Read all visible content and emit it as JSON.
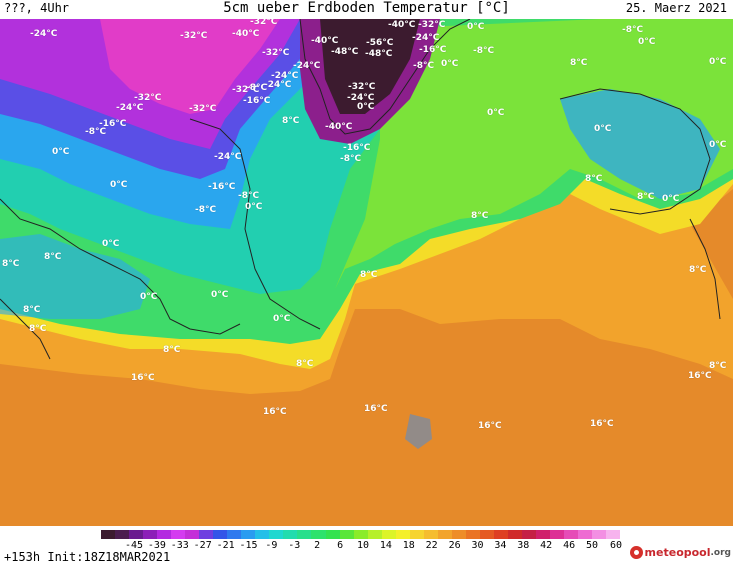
{
  "header": {
    "top_left": "???, 4Uhr",
    "title": "5cm ueber Erdboden Temperatur [°C]",
    "date": "25. Maerz 2021"
  },
  "footer": {
    "init_text": "+153h Init:18Z18MAR2021",
    "logo_main": "meteopool",
    "logo_suffix": ".org"
  },
  "colors": {
    "land_outline": "#222222",
    "label_text": "#ffffff"
  },
  "legend": {
    "ticks": [
      "-45",
      "-39",
      "-33",
      "-27",
      "-21",
      "-15",
      "-9",
      "-3",
      "2",
      "6",
      "10",
      "14",
      "18",
      "22",
      "26",
      "30",
      "34",
      "38",
      "42",
      "46",
      "50",
      "60"
    ],
    "colors": [
      "#3c1b2f",
      "#4b1d4f",
      "#6a1b8f",
      "#8c1fb8",
      "#b32ae0",
      "#d43bf0",
      "#c42fd8",
      "#6f3fe0",
      "#3355e8",
      "#2f79ee",
      "#2a9cf0",
      "#24bfe8",
      "#1fd8d0",
      "#22dcae",
      "#28df8c",
      "#2ee26c",
      "#34e250",
      "#5ae63a",
      "#8aec2a",
      "#b6f02a",
      "#dcf428",
      "#f4f02a",
      "#f6d430",
      "#f5bd2f",
      "#f2a42c",
      "#ee8d28",
      "#ea7424",
      "#e55a22",
      "#de3f22",
      "#d02a2a",
      "#c52045",
      "#d0206b",
      "#dd2f95",
      "#e64bb7",
      "#ee6bd2",
      "#f38fe3",
      "#f7b3ee"
    ]
  },
  "map_labels": [
    {
      "text": "-24°C",
      "icon": "temp-label"
    },
    {
      "text": "-32°C"
    },
    {
      "text": "-32°C"
    },
    {
      "text": "-40°C"
    },
    {
      "text": "-40°C"
    },
    {
      "text": "-32°C"
    },
    {
      "text": "0°C"
    },
    {
      "text": "-8°C"
    },
    {
      "text": "0°C"
    },
    {
      "text": "-32°C"
    },
    {
      "text": "-40°C"
    },
    {
      "text": "-48°C"
    },
    {
      "text": "-56°C"
    },
    {
      "text": "-24°C"
    },
    {
      "text": "-48°C"
    },
    {
      "text": "-16°C"
    },
    {
      "text": "-8°C"
    },
    {
      "text": "0°C"
    },
    {
      "text": "-8°C"
    },
    {
      "text": "-24°C"
    },
    {
      "text": "-24°C"
    },
    {
      "text": "8°C"
    },
    {
      "text": "0°C"
    },
    {
      "text": "-24°C"
    },
    {
      "text": "-8°C"
    },
    {
      "text": "-32°C"
    },
    {
      "text": "-32°C"
    },
    {
      "text": "-16°C"
    },
    {
      "text": "-32°C"
    },
    {
      "text": "-24°C"
    },
    {
      "text": "-24°C"
    },
    {
      "text": "-32°C"
    },
    {
      "text": "0°C"
    },
    {
      "text": "0°C"
    },
    {
      "text": "-16°C"
    },
    {
      "text": "-8°C"
    },
    {
      "text": "-40°C"
    },
    {
      "text": "8°C"
    },
    {
      "text": "0°C"
    },
    {
      "text": "0°C"
    },
    {
      "text": "0°C"
    },
    {
      "text": "-16°C"
    },
    {
      "text": "-8°C"
    },
    {
      "text": "-24°C"
    },
    {
      "text": "0°C"
    },
    {
      "text": "-16°C"
    },
    {
      "text": "-8°C"
    },
    {
      "text": "8°C"
    },
    {
      "text": "0°C"
    },
    {
      "text": "-8°C"
    },
    {
      "text": "0°C"
    },
    {
      "text": "8°C"
    },
    {
      "text": "8°C"
    },
    {
      "text": "0°C"
    },
    {
      "text": "8°C"
    },
    {
      "text": "8°C"
    },
    {
      "text": "8°C"
    },
    {
      "text": "8°C"
    },
    {
      "text": "0°C"
    },
    {
      "text": "0°C"
    },
    {
      "text": "8°C"
    },
    {
      "text": "8°C"
    },
    {
      "text": "0°C"
    },
    {
      "text": "8°C"
    },
    {
      "text": "16°C"
    },
    {
      "text": "8°C"
    },
    {
      "text": "16°C"
    },
    {
      "text": "16°C"
    },
    {
      "text": "16°C"
    },
    {
      "text": "16°C"
    },
    {
      "text": "16°C"
    },
    {
      "text": "8°C"
    }
  ]
}
